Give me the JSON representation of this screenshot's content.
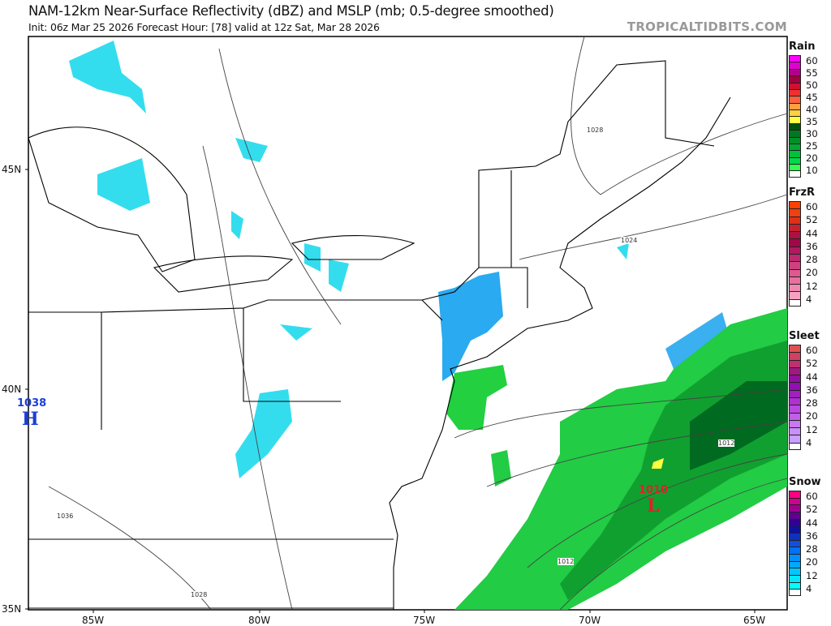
{
  "header": {
    "title": "NAM-12km Near-Surface Reflectivity (dBZ) and MSLP (mb; 0.5-degree smoothed)",
    "subtitle": "Init: 06z Mar 25 2026   Forecast Hour: [78]   valid at 12z Sat, Mar 28 2026",
    "credit": "TROPICALTIDBITS.COM"
  },
  "axes": {
    "lat_labels": [
      "45N",
      "40N",
      "35N"
    ],
    "lon_labels": [
      "85W",
      "80W",
      "75W",
      "70W",
      "65W"
    ]
  },
  "pressure_centers": {
    "high": {
      "letter": "H",
      "value": "1038",
      "color": "#1a3fd6"
    },
    "low": {
      "letter": "L",
      "value": "1010",
      "color": "#e0202a"
    }
  },
  "isobar_labels": [
    "1028",
    "1024",
    "1012",
    "1036",
    "1028",
    "1012"
  ],
  "legend": [
    {
      "title": "Rain",
      "labels": [
        "60",
        "55",
        "50",
        "45",
        "40",
        "35",
        "30",
        "25",
        "20",
        "10"
      ],
      "colors": [
        "#ff00ff",
        "#e000d0",
        "#b0008a",
        "#a00040",
        "#d01030",
        "#f03030",
        "#ff6040",
        "#ffa040",
        "#ffd040",
        "#ffff40",
        "#005010",
        "#007820",
        "#009028",
        "#00a832",
        "#00c03c",
        "#00d848",
        "#30ff50",
        "#ffffff"
      ]
    },
    {
      "title": "FrzR",
      "labels": [
        "60",
        "52",
        "44",
        "36",
        "28",
        "20",
        "12",
        "4"
      ],
      "colors": [
        "#ff4000",
        "#f04010",
        "#e03018",
        "#c82030",
        "#b01040",
        "#a00848",
        "#b01860",
        "#c02870",
        "#d04080",
        "#e05890",
        "#e870a0",
        "#f088b0",
        "#f8a0c0",
        "#ffffff"
      ]
    },
    {
      "title": "Sleet",
      "labels": [
        "60",
        "52",
        "44",
        "36",
        "28",
        "20",
        "12",
        "4"
      ],
      "colors": [
        "#e05050",
        "#d04060",
        "#c03070",
        "#a01880",
        "#9010a0",
        "#9010b0",
        "#a020c0",
        "#b030d0",
        "#b848e0",
        "#c060e8",
        "#c878f0",
        "#c890f8",
        "#c8a0ff",
        "#ffffff"
      ]
    },
    {
      "title": "Snow",
      "labels": [
        "60",
        "52",
        "44",
        "36",
        "28",
        "20",
        "12",
        "4"
      ],
      "colors": [
        "#ff0080",
        "#d00090",
        "#a00090",
        "#600090",
        "#300090",
        "#1010a0",
        "#1030c0",
        "#1050e0",
        "#0070ff",
        "#0090ff",
        "#00a8ff",
        "#00c8ff",
        "#00e8ff",
        "#00ffff",
        "#ffffff"
      ]
    }
  ]
}
